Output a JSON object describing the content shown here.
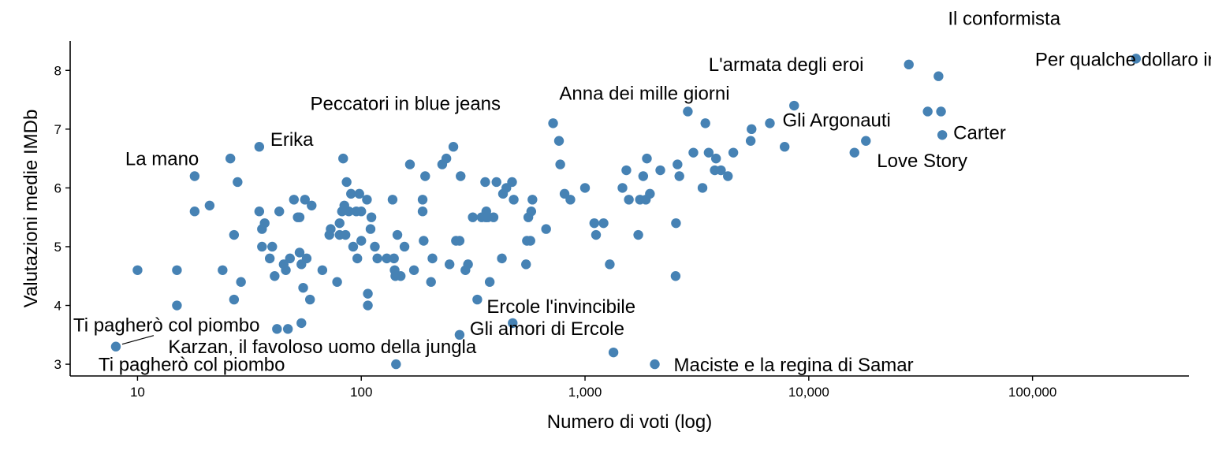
{
  "chart_data": {
    "type": "scatter",
    "xlabel": "Numero di voti (log)",
    "ylabel": "Valutazioni medie IMDb",
    "xscale": "log10",
    "xlim": [
      5,
      500000
    ],
    "ylim": [
      2.8,
      8.5
    ],
    "x_ticks": [
      10,
      100,
      1000,
      10000,
      100000
    ],
    "x_tick_labels": [
      "10",
      "100",
      "1,000",
      "10,000",
      "100,000"
    ],
    "y_ticks": [
      3,
      4,
      5,
      6,
      7,
      8
    ],
    "y_tick_labels": [
      "3",
      "4",
      "5",
      "6",
      "7",
      "8"
    ],
    "grid": false,
    "point_color": "#4682B4",
    "points": [
      {
        "x": 8,
        "y": 3.3
      },
      {
        "x": 10,
        "y": 4.6
      },
      {
        "x": 15,
        "y": 4.6
      },
      {
        "x": 15,
        "y": 4.0
      },
      {
        "x": 18,
        "y": 6.2
      },
      {
        "x": 18,
        "y": 5.6
      },
      {
        "x": 21,
        "y": 5.7
      },
      {
        "x": 24,
        "y": 4.6
      },
      {
        "x": 26,
        "y": 6.5
      },
      {
        "x": 27,
        "y": 5.2
      },
      {
        "x": 27,
        "y": 4.1
      },
      {
        "x": 28,
        "y": 6.1
      },
      {
        "x": 29,
        "y": 4.4
      },
      {
        "x": 35,
        "y": 6.7
      },
      {
        "x": 35,
        "y": 5.6
      },
      {
        "x": 36,
        "y": 5.3
      },
      {
        "x": 37,
        "y": 5.4
      },
      {
        "x": 36,
        "y": 5.0
      },
      {
        "x": 39,
        "y": 4.8
      },
      {
        "x": 40,
        "y": 5.0
      },
      {
        "x": 41,
        "y": 4.5
      },
      {
        "x": 42,
        "y": 3.6
      },
      {
        "x": 43,
        "y": 5.6
      },
      {
        "x": 45,
        "y": 4.7
      },
      {
        "x": 46,
        "y": 4.6
      },
      {
        "x": 47,
        "y": 3.6
      },
      {
        "x": 48,
        "y": 4.8
      },
      {
        "x": 50,
        "y": 5.8
      },
      {
        "x": 52,
        "y": 5.5
      },
      {
        "x": 53,
        "y": 5.5
      },
      {
        "x": 53,
        "y": 4.9
      },
      {
        "x": 54,
        "y": 4.7
      },
      {
        "x": 55,
        "y": 4.3
      },
      {
        "x": 54,
        "y": 3.7
      },
      {
        "x": 56,
        "y": 5.8
      },
      {
        "x": 57,
        "y": 4.8
      },
      {
        "x": 59,
        "y": 4.1
      },
      {
        "x": 60,
        "y": 5.7
      },
      {
        "x": 67,
        "y": 4.6
      },
      {
        "x": 72,
        "y": 5.2
      },
      {
        "x": 73,
        "y": 5.3
      },
      {
        "x": 78,
        "y": 4.4
      },
      {
        "x": 80,
        "y": 5.2
      },
      {
        "x": 80,
        "y": 5.4
      },
      {
        "x": 82,
        "y": 5.6
      },
      {
        "x": 83,
        "y": 6.5
      },
      {
        "x": 84,
        "y": 5.7
      },
      {
        "x": 85,
        "y": 5.2
      },
      {
        "x": 86,
        "y": 6.1
      },
      {
        "x": 88,
        "y": 5.6
      },
      {
        "x": 90,
        "y": 5.9
      },
      {
        "x": 92,
        "y": 5.0
      },
      {
        "x": 95,
        "y": 5.6
      },
      {
        "x": 96,
        "y": 4.8
      },
      {
        "x": 98,
        "y": 5.9
      },
      {
        "x": 100,
        "y": 5.6
      },
      {
        "x": 100,
        "y": 5.1
      },
      {
        "x": 106,
        "y": 5.8
      },
      {
        "x": 107,
        "y": 4.2
      },
      {
        "x": 107,
        "y": 4.0
      },
      {
        "x": 110,
        "y": 5.3
      },
      {
        "x": 111,
        "y": 5.5
      },
      {
        "x": 115,
        "y": 5.0
      },
      {
        "x": 118,
        "y": 4.8
      },
      {
        "x": 130,
        "y": 4.8
      },
      {
        "x": 138,
        "y": 5.8
      },
      {
        "x": 140,
        "y": 4.8
      },
      {
        "x": 141,
        "y": 4.6
      },
      {
        "x": 142,
        "y": 4.5
      },
      {
        "x": 143,
        "y": 3.0
      },
      {
        "x": 145,
        "y": 5.2
      },
      {
        "x": 150,
        "y": 4.5
      },
      {
        "x": 156,
        "y": 5.0
      },
      {
        "x": 165,
        "y": 6.4
      },
      {
        "x": 172,
        "y": 4.6
      },
      {
        "x": 188,
        "y": 5.8
      },
      {
        "x": 188,
        "y": 5.6
      },
      {
        "x": 190,
        "y": 5.1
      },
      {
        "x": 193,
        "y": 6.2
      },
      {
        "x": 205,
        "y": 4.4
      },
      {
        "x": 208,
        "y": 4.8
      },
      {
        "x": 230,
        "y": 6.4
      },
      {
        "x": 240,
        "y": 6.5
      },
      {
        "x": 248,
        "y": 4.7
      },
      {
        "x": 258,
        "y": 6.7
      },
      {
        "x": 265,
        "y": 5.1
      },
      {
        "x": 275,
        "y": 5.1
      },
      {
        "x": 275,
        "y": 3.5
      },
      {
        "x": 278,
        "y": 6.2
      },
      {
        "x": 292,
        "y": 4.6
      },
      {
        "x": 300,
        "y": 4.7
      },
      {
        "x": 315,
        "y": 5.5
      },
      {
        "x": 330,
        "y": 4.1
      },
      {
        "x": 345,
        "y": 5.5
      },
      {
        "x": 358,
        "y": 6.1
      },
      {
        "x": 360,
        "y": 5.5
      },
      {
        "x": 362,
        "y": 5.6
      },
      {
        "x": 368,
        "y": 5.5
      },
      {
        "x": 375,
        "y": 4.4
      },
      {
        "x": 390,
        "y": 5.5
      },
      {
        "x": 402,
        "y": 6.1
      },
      {
        "x": 425,
        "y": 4.8
      },
      {
        "x": 430,
        "y": 5.9
      },
      {
        "x": 445,
        "y": 6.0
      },
      {
        "x": 472,
        "y": 6.1
      },
      {
        "x": 475,
        "y": 3.7
      },
      {
        "x": 480,
        "y": 5.8
      },
      {
        "x": 545,
        "y": 4.7
      },
      {
        "x": 550,
        "y": 5.1
      },
      {
        "x": 558,
        "y": 5.5
      },
      {
        "x": 570,
        "y": 5.1
      },
      {
        "x": 575,
        "y": 5.6
      },
      {
        "x": 582,
        "y": 5.8
      },
      {
        "x": 670,
        "y": 5.3
      },
      {
        "x": 720,
        "y": 7.1
      },
      {
        "x": 765,
        "y": 6.8
      },
      {
        "x": 775,
        "y": 6.4
      },
      {
        "x": 810,
        "y": 5.9
      },
      {
        "x": 860,
        "y": 5.8
      },
      {
        "x": 1000,
        "y": 6.0
      },
      {
        "x": 1100,
        "y": 5.4
      },
      {
        "x": 1120,
        "y": 5.2
      },
      {
        "x": 1210,
        "y": 5.4
      },
      {
        "x": 1290,
        "y": 4.7
      },
      {
        "x": 1340,
        "y": 3.2
      },
      {
        "x": 1470,
        "y": 6.0
      },
      {
        "x": 1530,
        "y": 6.3
      },
      {
        "x": 1570,
        "y": 5.8
      },
      {
        "x": 1730,
        "y": 5.2
      },
      {
        "x": 1760,
        "y": 5.8
      },
      {
        "x": 1820,
        "y": 6.2
      },
      {
        "x": 1870,
        "y": 5.8
      },
      {
        "x": 1890,
        "y": 6.5
      },
      {
        "x": 1950,
        "y": 5.9
      },
      {
        "x": 2050,
        "y": 3.0
      },
      {
        "x": 2170,
        "y": 6.3
      },
      {
        "x": 2540,
        "y": 4.5
      },
      {
        "x": 2550,
        "y": 5.4
      },
      {
        "x": 2590,
        "y": 6.4
      },
      {
        "x": 2640,
        "y": 6.2
      },
      {
        "x": 2880,
        "y": 7.3
      },
      {
        "x": 3050,
        "y": 6.6
      },
      {
        "x": 3350,
        "y": 6.0
      },
      {
        "x": 3450,
        "y": 7.1
      },
      {
        "x": 3570,
        "y": 6.6
      },
      {
        "x": 3800,
        "y": 6.3
      },
      {
        "x": 3850,
        "y": 6.5
      },
      {
        "x": 4050,
        "y": 6.3
      },
      {
        "x": 4350,
        "y": 6.2
      },
      {
        "x": 4600,
        "y": 6.6
      },
      {
        "x": 5500,
        "y": 6.8
      },
      {
        "x": 5550,
        "y": 7.0
      },
      {
        "x": 6700,
        "y": 7.1
      },
      {
        "x": 7800,
        "y": 6.7
      },
      {
        "x": 8600,
        "y": 7.4
      },
      {
        "x": 16000,
        "y": 6.6
      },
      {
        "x": 18000,
        "y": 6.8
      },
      {
        "x": 28000,
        "y": 8.1
      },
      {
        "x": 34000,
        "y": 7.3
      },
      {
        "x": 38000,
        "y": 7.9
      },
      {
        "x": 39000,
        "y": 7.3
      },
      {
        "x": 39500,
        "y": 6.9
      },
      {
        "x": 290000,
        "y": 8.2
      }
    ],
    "annotations": [
      {
        "text": "Per qualche dollaro in più",
        "x": 290000,
        "y": 8.2
      },
      {
        "text": "L'armata degli eroi",
        "x": 28000,
        "y": 8.1
      },
      {
        "text": "Il conformista",
        "x": 38000,
        "y": 7.9
      },
      {
        "text": "Anna dei mille giorni",
        "x": 2880,
        "y": 7.3
      },
      {
        "text": "Peccatori in blue jeans",
        "x": 720,
        "y": 7.1
      },
      {
        "text": "Gli Argonauti",
        "x": 6700,
        "y": 7.1
      },
      {
        "text": "Carter",
        "x": 39500,
        "y": 6.9
      },
      {
        "text": "Erika",
        "x": 35,
        "y": 6.7
      },
      {
        "text": "Love Story",
        "x": 18000,
        "y": 6.8
      },
      {
        "text": "La mano",
        "x": 18,
        "y": 6.2
      },
      {
        "text": "Ercole l'invincibile",
        "x": 330,
        "y": 4.1
      },
      {
        "text": "Ti pagherò col piombo",
        "x": 8,
        "y": 3.3
      },
      {
        "text": "Gli amori di Ercole",
        "x": 275,
        "y": 3.5
      },
      {
        "text": "Karzan, il favoloso uomo della jungla",
        "x": 143,
        "y": 3.0
      },
      {
        "text": "Ti pagherò col piombo",
        "x": 8,
        "y": 3.3
      },
      {
        "text": "Maciste e la regina di Samar",
        "x": 2050,
        "y": 3.0
      }
    ]
  }
}
